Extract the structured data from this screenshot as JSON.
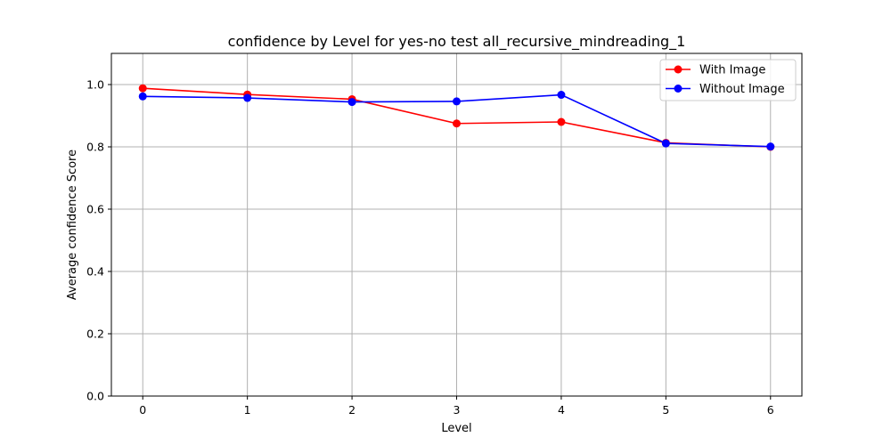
{
  "chart_data": {
    "type": "line",
    "title": "confidence by Level for yes-no test all_recursive_mindreading_1",
    "xlabel": "Level",
    "ylabel": "Average confidence Score",
    "x": [
      0,
      1,
      2,
      3,
      4,
      5,
      6
    ],
    "x_ticks": [
      "0",
      "1",
      "2",
      "3",
      "4",
      "5",
      "6"
    ],
    "y_ticks": [
      "0.0",
      "0.2",
      "0.4",
      "0.6",
      "0.8",
      "1.0"
    ],
    "xlim": [
      -0.3,
      6.3
    ],
    "ylim": [
      0,
      1.1
    ],
    "grid": true,
    "legend_position": "top-right",
    "series": [
      {
        "name": "With Image",
        "color": "#ff0000",
        "marker": "circle",
        "values": [
          0.988,
          0.968,
          0.953,
          0.875,
          0.88,
          0.813,
          0.8
        ]
      },
      {
        "name": "Without Image",
        "color": "#0000ff",
        "marker": "circle",
        "values": [
          0.962,
          0.957,
          0.944,
          0.946,
          0.967,
          0.811,
          0.801
        ]
      }
    ]
  }
}
